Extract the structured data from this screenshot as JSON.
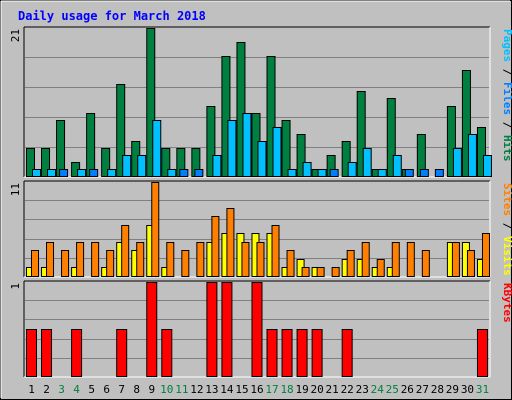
{
  "title": "Daily usage for March 2018",
  "legends": {
    "top": [
      {
        "text": "Pages",
        "color": "#00c0ff"
      },
      {
        "text": " / ",
        "color": "#000000"
      },
      {
        "text": "Files",
        "color": "#0080ff"
      },
      {
        "text": " / ",
        "color": "#000000"
      },
      {
        "text": "Hits",
        "color": "#008040"
      }
    ],
    "middle": [
      {
        "text": "Sites",
        "color": "#ff8000"
      },
      {
        "text": " / ",
        "color": "#000000"
      },
      {
        "text": "Visits",
        "color": "#ffff00"
      }
    ],
    "bottom": [
      {
        "text": "KBytes",
        "color": "#ff0000"
      }
    ]
  },
  "colors": {
    "background": "#c0c0c0",
    "title": "#0000ff",
    "hits": "#008040",
    "files": "#0080ff",
    "pages": "#00c0ff",
    "visits": "#ffff00",
    "sites": "#ff8000",
    "kbytes": "#ff0000",
    "weekend_label": "#008040",
    "weekday_label": "#000000",
    "gridline": "#808080"
  },
  "chart_data": [
    {
      "type": "bar",
      "title": "Daily usage for March 2018",
      "ylabel": "Pages / Files / Hits",
      "ymax_label": "21",
      "ylim": [
        0,
        21
      ],
      "grid": true,
      "categories": [
        "1",
        "2",
        "3",
        "4",
        "5",
        "6",
        "7",
        "8",
        "9",
        "10",
        "11",
        "12",
        "13",
        "14",
        "15",
        "16",
        "17",
        "18",
        "19",
        "20",
        "21",
        "22",
        "23",
        "24",
        "25",
        "26",
        "27",
        "28",
        "29",
        "30",
        "31"
      ],
      "series": [
        {
          "name": "Hits",
          "values": [
            4,
            4,
            8,
            2,
            9,
            4,
            13,
            5,
            21,
            4,
            4,
            4,
            10,
            17,
            19,
            9,
            17,
            8,
            6,
            1,
            3,
            5,
            12,
            1,
            11,
            1,
            6,
            0,
            10,
            15,
            7
          ]
        },
        {
          "name": "Files",
          "values": [
            1,
            1,
            1,
            1,
            1,
            1,
            1,
            1,
            2,
            1,
            1,
            1,
            1,
            1,
            1,
            1,
            1,
            1,
            1,
            1,
            1,
            1,
            1,
            1,
            1,
            1,
            1,
            1,
            1,
            1,
            1
          ]
        },
        {
          "name": "Pages",
          "values": [
            1,
            1,
            0,
            1,
            0,
            1,
            3,
            3,
            8,
            1,
            0,
            0,
            3,
            8,
            9,
            5,
            7,
            1,
            2,
            1,
            0,
            2,
            4,
            1,
            3,
            0,
            0,
            0,
            4,
            6,
            3
          ]
        }
      ]
    },
    {
      "type": "bar",
      "ylabel": "Sites / Visits",
      "ymax_label": "11",
      "ylim": [
        0,
        11
      ],
      "grid": true,
      "categories": [
        "1",
        "2",
        "3",
        "4",
        "5",
        "6",
        "7",
        "8",
        "9",
        "10",
        "11",
        "12",
        "13",
        "14",
        "15",
        "16",
        "17",
        "18",
        "19",
        "20",
        "21",
        "22",
        "23",
        "24",
        "25",
        "26",
        "27",
        "28",
        "29",
        "30",
        "31"
      ],
      "series": [
        {
          "name": "Visits",
          "values": [
            1,
            1,
            0,
            1,
            0,
            1,
            4,
            3,
            6,
            1,
            0,
            0,
            4,
            5,
            5,
            5,
            5,
            1,
            2,
            1,
            0,
            2,
            2,
            1,
            1,
            0,
            0,
            0,
            4,
            4,
            2
          ]
        },
        {
          "name": "Sites",
          "values": [
            3,
            4,
            3,
            4,
            4,
            3,
            6,
            4,
            11,
            4,
            3,
            4,
            7,
            8,
            4,
            4,
            6,
            3,
            1,
            1,
            1,
            3,
            4,
            2,
            4,
            4,
            3,
            0,
            4,
            3,
            5
          ]
        }
      ]
    },
    {
      "type": "bar",
      "ylabel": "KBytes",
      "ymax_label": "1",
      "ylim": [
        0,
        1
      ],
      "grid": true,
      "categories": [
        "1",
        "2",
        "3",
        "4",
        "5",
        "6",
        "7",
        "8",
        "9",
        "10",
        "11",
        "12",
        "13",
        "14",
        "15",
        "16",
        "17",
        "18",
        "19",
        "20",
        "21",
        "22",
        "23",
        "24",
        "25",
        "26",
        "27",
        "28",
        "29",
        "30",
        "31"
      ],
      "series": [
        {
          "name": "KBytes",
          "values": [
            0.5,
            0.5,
            0,
            0.5,
            0,
            0,
            0.5,
            0,
            1,
            0.5,
            0,
            0,
            1,
            1,
            0,
            1,
            0.5,
            0.5,
            0.5,
            0.5,
            0,
            0.5,
            0,
            0,
            0,
            0,
            0,
            0,
            0,
            0,
            0.5
          ]
        }
      ]
    }
  ],
  "x_axis": {
    "days": [
      "1",
      "2",
      "3",
      "4",
      "5",
      "6",
      "7",
      "8",
      "9",
      "10",
      "11",
      "12",
      "13",
      "14",
      "15",
      "16",
      "17",
      "18",
      "19",
      "20",
      "21",
      "22",
      "23",
      "24",
      "25",
      "26",
      "27",
      "28",
      "29",
      "30",
      "31"
    ],
    "weekend": [
      false,
      false,
      true,
      true,
      false,
      false,
      false,
      false,
      false,
      true,
      true,
      false,
      false,
      false,
      false,
      false,
      true,
      true,
      false,
      false,
      false,
      false,
      false,
      true,
      true,
      false,
      false,
      false,
      false,
      false,
      true
    ]
  }
}
